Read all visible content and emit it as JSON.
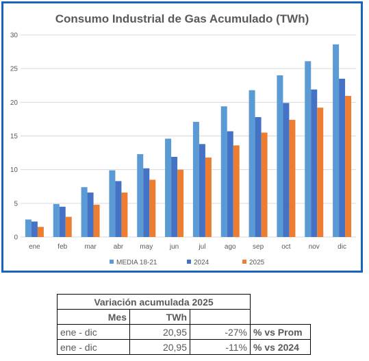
{
  "chart_data": {
    "type": "bar",
    "title": "Consumo Industrial de Gas Acumulado (TWh)",
    "xlabel": "",
    "ylabel": "",
    "ylim": [
      0,
      30
    ],
    "yticks": [
      0,
      5,
      10,
      15,
      20,
      25,
      30
    ],
    "grid": true,
    "legend_position": "bottom",
    "categories": [
      "ene",
      "feb",
      "mar",
      "abr",
      "may",
      "jun",
      "jul",
      "ago",
      "sep",
      "oct",
      "nov",
      "dic"
    ],
    "series": [
      {
        "name": "MEDIA 18-21",
        "color": "#5b9bd5",
        "values": [
          2.6,
          4.9,
          7.4,
          9.9,
          12.3,
          14.6,
          17.1,
          19.4,
          21.8,
          24.0,
          26.1,
          28.6
        ]
      },
      {
        "name": "2024",
        "color": "#4472c4",
        "values": [
          2.3,
          4.5,
          6.6,
          8.3,
          10.2,
          11.9,
          13.8,
          15.7,
          17.8,
          19.9,
          21.9,
          23.5
        ]
      },
      {
        "name": "2025",
        "color": "#ed7d31",
        "values": [
          1.5,
          3.0,
          4.8,
          6.6,
          8.5,
          10.0,
          11.8,
          13.6,
          15.5,
          17.4,
          19.2,
          20.95
        ]
      }
    ]
  },
  "table": {
    "title": "Variación acumulada 2025",
    "col_mes": "Mes",
    "col_twh": "TWh",
    "rows": [
      {
        "mes": "ene - dic",
        "twh": "20,95",
        "pct": "-27%",
        "label": "% vs Prom"
      },
      {
        "mes": "ene - dic",
        "twh": "20,95",
        "pct": "-11%",
        "label": "% vs 2024"
      }
    ]
  }
}
